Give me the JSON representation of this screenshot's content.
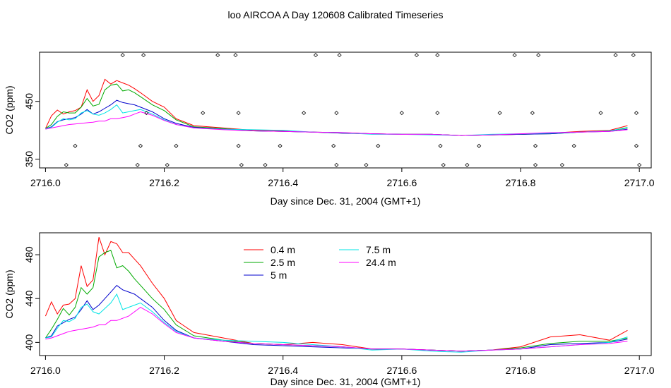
{
  "title": "loo AIRCOA A  Day 120608  Calibrated Timeseries",
  "chart_data": [
    {
      "type": "line",
      "xlabel": "Day since Dec. 31, 2004 (GMT+1)",
      "ylabel": "CO2 (ppm)",
      "xlim": [
        2715.99,
        2717.02
      ],
      "ylim": [
        335,
        535
      ],
      "xticks": [
        2716.0,
        2716.2,
        2716.4,
        2716.6,
        2716.8,
        2717.0
      ],
      "xtick_labels": [
        "2716.0",
        "2716.2",
        "2716.4",
        "2716.6",
        "2716.8",
        "2717.0"
      ],
      "yticks": [
        350,
        450
      ],
      "ytick_labels": [
        "350",
        "450"
      ],
      "grid": false,
      "legend": "none",
      "series": [
        {
          "color": "#ff0000",
          "x": [
            2716.0,
            2716.01,
            2716.02,
            2716.03,
            2716.04,
            2716.05,
            2716.06,
            2716.07,
            2716.08,
            2716.09,
            2716.1,
            2716.11,
            2716.12,
            2716.13,
            2716.14,
            2716.15,
            2716.16,
            2716.18,
            2716.2,
            2716.22,
            2716.25,
            2716.3,
            2716.35,
            2716.4,
            2716.45,
            2716.5,
            2716.55,
            2716.6,
            2716.65,
            2716.7,
            2716.75,
            2716.8,
            2716.85,
            2716.9,
            2716.95,
            2716.98
          ],
          "y": [
            403,
            425,
            435,
            428,
            432,
            434,
            440,
            470,
            450,
            460,
            488,
            480,
            486,
            482,
            478,
            472,
            465,
            450,
            440,
            420,
            408,
            404,
            400,
            399,
            397,
            396,
            394,
            393,
            393,
            391,
            392,
            393,
            395,
            398,
            400,
            408
          ]
        },
        {
          "color": "#00aa00",
          "x": [
            2716.0,
            2716.01,
            2716.02,
            2716.03,
            2716.04,
            2716.05,
            2716.06,
            2716.07,
            2716.08,
            2716.09,
            2716.1,
            2716.11,
            2716.12,
            2716.13,
            2716.14,
            2716.15,
            2716.16,
            2716.18,
            2716.2,
            2716.22,
            2716.25,
            2716.3,
            2716.35,
            2716.4,
            2716.45,
            2716.5,
            2716.55,
            2716.6,
            2716.65,
            2716.7,
            2716.75,
            2716.8,
            2716.85,
            2716.9,
            2716.95,
            2716.98
          ],
          "y": [
            403,
            410,
            424,
            432,
            430,
            430,
            440,
            455,
            442,
            445,
            470,
            478,
            480,
            468,
            470,
            465,
            458,
            444,
            434,
            418,
            406,
            403,
            399,
            398,
            397,
            395,
            394,
            393,
            393,
            391,
            392,
            393,
            394,
            397,
            399,
            404
          ]
        },
        {
          "color": "#0000cc",
          "x": [
            2716.0,
            2716.01,
            2716.02,
            2716.03,
            2716.04,
            2716.05,
            2716.06,
            2716.07,
            2716.08,
            2716.09,
            2716.1,
            2716.11,
            2716.12,
            2716.13,
            2716.14,
            2716.15,
            2716.16,
            2716.18,
            2716.2,
            2716.22,
            2716.25,
            2716.3,
            2716.35,
            2716.4,
            2716.45,
            2716.5,
            2716.55,
            2716.6,
            2716.65,
            2716.7,
            2716.75,
            2716.8,
            2716.85,
            2716.9,
            2716.95,
            2716.98
          ],
          "y": [
            403,
            406,
            415,
            418,
            420,
            422,
            428,
            436,
            428,
            432,
            438,
            444,
            452,
            448,
            446,
            444,
            440,
            432,
            420,
            412,
            405,
            402,
            399,
            398,
            397,
            395,
            394,
            393,
            393,
            391,
            392,
            393,
            394,
            397,
            398,
            402
          ]
        },
        {
          "color": "#00e5e5",
          "x": [
            2716.0,
            2716.01,
            2716.02,
            2716.03,
            2716.04,
            2716.05,
            2716.06,
            2716.07,
            2716.08,
            2716.09,
            2716.1,
            2716.11,
            2716.12,
            2716.13,
            2716.14,
            2716.15,
            2716.16,
            2716.18,
            2716.2,
            2716.22,
            2716.25,
            2716.3,
            2716.35,
            2716.4,
            2716.45,
            2716.5,
            2716.55,
            2716.6,
            2716.65,
            2716.7,
            2716.75,
            2716.8,
            2716.85,
            2716.9,
            2716.95,
            2716.98
          ],
          "y": [
            403,
            405,
            414,
            420,
            418,
            420,
            430,
            434,
            428,
            426,
            430,
            436,
            444,
            430,
            432,
            434,
            436,
            428,
            418,
            410,
            404,
            402,
            401,
            400,
            397,
            396,
            393,
            393,
            392,
            391,
            393,
            394,
            395,
            397,
            399,
            405
          ]
        },
        {
          "color": "#ff00ff",
          "x": [
            2716.0,
            2716.01,
            2716.02,
            2716.03,
            2716.04,
            2716.05,
            2716.06,
            2716.07,
            2716.08,
            2716.09,
            2716.1,
            2716.11,
            2716.12,
            2716.13,
            2716.14,
            2716.15,
            2716.16,
            2716.18,
            2716.2,
            2716.22,
            2716.25,
            2716.3,
            2716.35,
            2716.4,
            2716.45,
            2716.5,
            2716.55,
            2716.6,
            2716.65,
            2716.7,
            2716.75,
            2716.8,
            2716.85,
            2716.9,
            2716.95,
            2716.98
          ],
          "y": [
            402,
            404,
            406,
            408,
            410,
            411,
            412,
            413,
            414,
            416,
            416,
            420,
            420,
            422,
            424,
            428,
            432,
            426,
            417,
            410,
            404,
            401,
            399,
            398,
            397,
            396,
            394,
            393,
            393,
            391,
            392,
            394,
            396,
            397,
            398,
            401
          ]
        }
      ],
      "markers": [
        {
          "x": 2716.035,
          "y": 340
        },
        {
          "x": 2716.05,
          "y": 373
        },
        {
          "x": 2716.13,
          "y": 530
        },
        {
          "x": 2716.155,
          "y": 340
        },
        {
          "x": 2716.16,
          "y": 373
        },
        {
          "x": 2716.165,
          "y": 530
        },
        {
          "x": 2716.17,
          "y": 430
        },
        {
          "x": 2716.205,
          "y": 340
        },
        {
          "x": 2716.22,
          "y": 373
        },
        {
          "x": 2716.265,
          "y": 430
        },
        {
          "x": 2716.29,
          "y": 530
        },
        {
          "x": 2716.32,
          "y": 530
        },
        {
          "x": 2716.325,
          "y": 430
        },
        {
          "x": 2716.325,
          "y": 373
        },
        {
          "x": 2716.33,
          "y": 340
        },
        {
          "x": 2716.37,
          "y": 340
        },
        {
          "x": 2716.395,
          "y": 373
        },
        {
          "x": 2716.435,
          "y": 430
        },
        {
          "x": 2716.455,
          "y": 530
        },
        {
          "x": 2716.485,
          "y": 373
        },
        {
          "x": 2716.49,
          "y": 340
        },
        {
          "x": 2716.49,
          "y": 430
        },
        {
          "x": 2716.495,
          "y": 530
        },
        {
          "x": 2716.54,
          "y": 340
        },
        {
          "x": 2716.56,
          "y": 373
        },
        {
          "x": 2716.6,
          "y": 430
        },
        {
          "x": 2716.625,
          "y": 530
        },
        {
          "x": 2716.66,
          "y": 530
        },
        {
          "x": 2716.66,
          "y": 430
        },
        {
          "x": 2716.665,
          "y": 373
        },
        {
          "x": 2716.67,
          "y": 340
        },
        {
          "x": 2716.71,
          "y": 340
        },
        {
          "x": 2716.73,
          "y": 373
        },
        {
          "x": 2716.765,
          "y": 430
        },
        {
          "x": 2716.79,
          "y": 530
        },
        {
          "x": 2716.82,
          "y": 430
        },
        {
          "x": 2716.825,
          "y": 373
        },
        {
          "x": 2716.825,
          "y": 340
        },
        {
          "x": 2716.83,
          "y": 530
        },
        {
          "x": 2716.87,
          "y": 340
        },
        {
          "x": 2716.89,
          "y": 373
        },
        {
          "x": 2716.935,
          "y": 430
        },
        {
          "x": 2716.96,
          "y": 530
        },
        {
          "x": 2716.99,
          "y": 530
        },
        {
          "x": 2716.995,
          "y": 430
        },
        {
          "x": 2716.995,
          "y": 373
        },
        {
          "x": 2717.0,
          "y": 340
        }
      ]
    },
    {
      "type": "line",
      "xlabel": "Day since Dec. 31, 2004 (GMT+1)",
      "ylabel": "CO2 (ppm)",
      "xlim": [
        2715.99,
        2717.02
      ],
      "ylim": [
        388,
        500
      ],
      "xticks": [
        2716.0,
        2716.2,
        2716.4,
        2716.6,
        2716.8,
        2717.0
      ],
      "xtick_labels": [
        "2716.0",
        "2716.2",
        "2716.4",
        "2716.6",
        "2716.8",
        "2717.0"
      ],
      "yticks": [
        400,
        440,
        480
      ],
      "ytick_labels": [
        "400",
        "440",
        "480"
      ],
      "grid": false,
      "legend": "top-center",
      "series": [
        {
          "name": "0.4 m",
          "color": "#ff0000",
          "x": [
            2716.0,
            2716.01,
            2716.02,
            2716.03,
            2716.04,
            2716.05,
            2716.06,
            2716.07,
            2716.08,
            2716.09,
            2716.1,
            2716.11,
            2716.12,
            2716.13,
            2716.14,
            2716.15,
            2716.16,
            2716.18,
            2716.2,
            2716.22,
            2716.25,
            2716.3,
            2716.35,
            2716.4,
            2716.45,
            2716.5,
            2716.55,
            2716.6,
            2716.65,
            2716.7,
            2716.75,
            2716.8,
            2716.85,
            2716.9,
            2716.95,
            2716.98
          ],
          "y": [
            424,
            437,
            426,
            434,
            435,
            440,
            470,
            451,
            457,
            496,
            480,
            492,
            490,
            482,
            482,
            476,
            470,
            454,
            440,
            420,
            409,
            404,
            399,
            398,
            400,
            398,
            394,
            394,
            393,
            392,
            393,
            396,
            405,
            407,
            402,
            411
          ]
        },
        {
          "name": "2.5 m",
          "color": "#00aa00",
          "x": [
            2716.0,
            2716.01,
            2716.02,
            2716.03,
            2716.04,
            2716.05,
            2716.06,
            2716.07,
            2716.08,
            2716.09,
            2716.1,
            2716.11,
            2716.12,
            2716.13,
            2716.14,
            2716.15,
            2716.16,
            2716.18,
            2716.2,
            2716.22,
            2716.25,
            2716.3,
            2716.35,
            2716.4,
            2716.45,
            2716.5,
            2716.55,
            2716.6,
            2716.65,
            2716.7,
            2716.75,
            2716.8,
            2716.85,
            2716.9,
            2716.95,
            2716.98
          ],
          "y": [
            404,
            412,
            421,
            431,
            425,
            432,
            450,
            444,
            450,
            478,
            482,
            484,
            468,
            470,
            465,
            458,
            452,
            440,
            430,
            416,
            406,
            402,
            399,
            398,
            397,
            396,
            394,
            394,
            393,
            392,
            393,
            395,
            399,
            401,
            401,
            404
          ]
        },
        {
          "name": "5 m",
          "color": "#0000cc",
          "x": [
            2716.0,
            2716.01,
            2716.02,
            2716.03,
            2716.04,
            2716.05,
            2716.06,
            2716.07,
            2716.08,
            2716.09,
            2716.1,
            2716.11,
            2716.12,
            2716.13,
            2716.14,
            2716.15,
            2716.16,
            2716.18,
            2716.2,
            2716.22,
            2716.25,
            2716.3,
            2716.35,
            2716.4,
            2716.45,
            2716.5,
            2716.55,
            2716.6,
            2716.65,
            2716.7,
            2716.75,
            2716.8,
            2716.85,
            2716.9,
            2716.95,
            2716.98
          ],
          "y": [
            404,
            406,
            415,
            418,
            421,
            423,
            430,
            438,
            430,
            434,
            440,
            446,
            452,
            448,
            446,
            444,
            440,
            432,
            420,
            411,
            404,
            401,
            398,
            397,
            396,
            395,
            394,
            394,
            393,
            392,
            393,
            394,
            398,
            399,
            400,
            403
          ]
        },
        {
          "name": "7.5 m",
          "color": "#00e5e5",
          "x": [
            2716.0,
            2716.01,
            2716.02,
            2716.03,
            2716.04,
            2716.05,
            2716.06,
            2716.07,
            2716.08,
            2716.09,
            2716.1,
            2716.11,
            2716.12,
            2716.13,
            2716.14,
            2716.15,
            2716.16,
            2716.18,
            2716.2,
            2716.22,
            2716.25,
            2716.3,
            2716.35,
            2716.4,
            2716.45,
            2716.5,
            2716.55,
            2716.6,
            2716.65,
            2716.7,
            2716.75,
            2716.8,
            2716.85,
            2716.9,
            2716.95,
            2716.98
          ],
          "y": [
            404,
            405,
            413,
            420,
            419,
            422,
            432,
            435,
            428,
            426,
            431,
            436,
            444,
            430,
            432,
            434,
            436,
            428,
            418,
            410,
            404,
            402,
            401,
            400,
            398,
            396,
            393,
            394,
            392,
            391,
            393,
            394,
            396,
            398,
            400,
            405
          ]
        },
        {
          "name": "24.4 m",
          "color": "#ff00ff",
          "x": [
            2716.0,
            2716.01,
            2716.02,
            2716.03,
            2716.04,
            2716.05,
            2716.06,
            2716.07,
            2716.08,
            2716.09,
            2716.1,
            2716.11,
            2716.12,
            2716.13,
            2716.14,
            2716.15,
            2716.16,
            2716.18,
            2716.2,
            2716.22,
            2716.25,
            2716.3,
            2716.35,
            2716.4,
            2716.45,
            2716.5,
            2716.55,
            2716.6,
            2716.65,
            2716.7,
            2716.75,
            2716.8,
            2716.85,
            2716.9,
            2716.95,
            2716.98
          ],
          "y": [
            403,
            404,
            406,
            408,
            410,
            411,
            412,
            413,
            414,
            416,
            416,
            420,
            420,
            422,
            424,
            428,
            432,
            426,
            417,
            409,
            404,
            401,
            399,
            398,
            397,
            396,
            394,
            394,
            393,
            392,
            393,
            394,
            396,
            398,
            399,
            401
          ]
        }
      ]
    }
  ]
}
